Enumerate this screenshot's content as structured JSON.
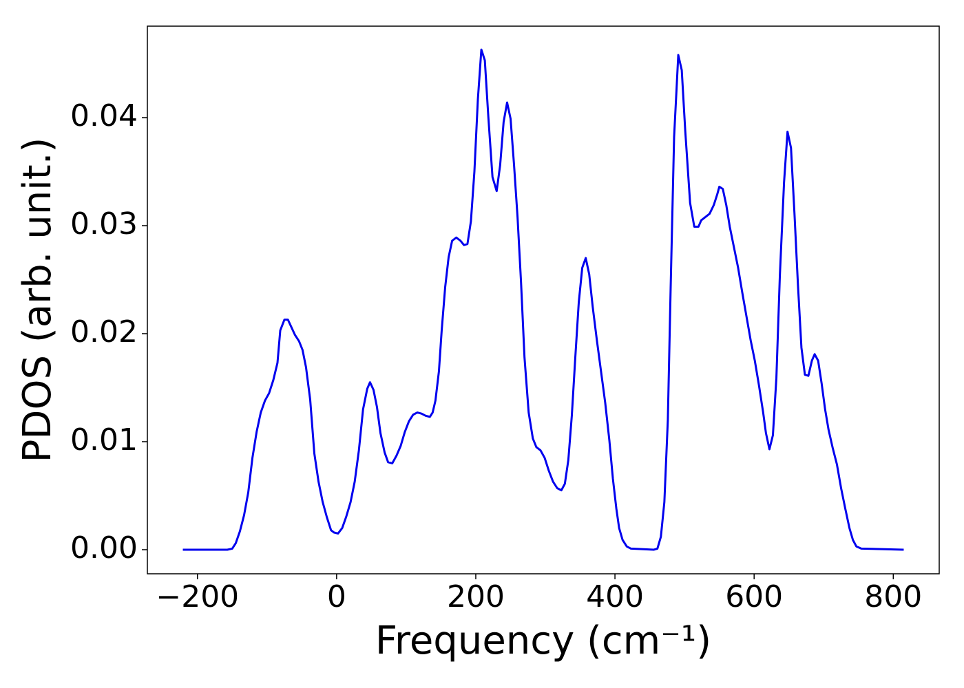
{
  "chart_data": {
    "type": "line",
    "xlabel": "Frequency (cm⁻¹)",
    "ylabel": "PDOS (arb. unit.)",
    "xlim": [
      -272,
      866
    ],
    "ylim": [
      -0.00223,
      0.04847
    ],
    "xticks": [
      {
        "value": -200,
        "label": "−200"
      },
      0,
      200,
      400,
      600,
      800
    ],
    "yticks": [
      {
        "value": 0,
        "label": "0.00"
      },
      {
        "value": 0.01,
        "label": "0.01"
      },
      {
        "value": 0.02,
        "label": "0.02"
      },
      {
        "value": 0.03,
        "label": "0.03"
      },
      {
        "value": 0.04,
        "label": "0.04"
      }
    ],
    "grid": false,
    "x": [
      -221,
      -157,
      -150,
      -145,
      -139,
      -133,
      -127,
      -121,
      -115,
      -109,
      -103,
      -97,
      -91,
      -85,
      -81,
      -75,
      -70,
      -60,
      -54,
      -49,
      -44,
      -38,
      -32,
      -26,
      -20,
      -14,
      -8,
      -4,
      2,
      8,
      14,
      20,
      26,
      32,
      38,
      44,
      48,
      53,
      58,
      63,
      69,
      74,
      80,
      86,
      92,
      98,
      104,
      110,
      116,
      122,
      128,
      134,
      138,
      142,
      147,
      151,
      156,
      161,
      166,
      172,
      178,
      183,
      188,
      193,
      198,
      203,
      208,
      213,
      218,
      224,
      230,
      235,
      240,
      245,
      250,
      255,
      260,
      265,
      270,
      276,
      282,
      287,
      293,
      299,
      305,
      311,
      317,
      323,
      328,
      333,
      338,
      343,
      348,
      353,
      358,
      363,
      368,
      374,
      380,
      386,
      392,
      397,
      402,
      406,
      411,
      417,
      423,
      456,
      461,
      466,
      471,
      476,
      480,
      485,
      491,
      496,
      501,
      508,
      514,
      520,
      524,
      530,
      536,
      542,
      547,
      550,
      555,
      560,
      565,
      571,
      577,
      583,
      589,
      595,
      601,
      607,
      613,
      617,
      622,
      627,
      632,
      637,
      643,
      648,
      653,
      658,
      663,
      668,
      673,
      678,
      683,
      687,
      692,
      697,
      702,
      707,
      713,
      719,
      725,
      731,
      737,
      742,
      747,
      754,
      815
    ],
    "series": [
      {
        "name": "PDOS",
        "color": "#0000ee",
        "values": [
          0,
          0,
          0.0001,
          0.0006,
          0.0017,
          0.0032,
          0.0053,
          0.0085,
          0.0109,
          0.0127,
          0.0138,
          0.0145,
          0.0157,
          0.0173,
          0.0203,
          0.0213,
          0.0213,
          0.0199,
          0.0193,
          0.0185,
          0.0169,
          0.0139,
          0.0089,
          0.0063,
          0.0044,
          0.003,
          0.0018,
          0.0016,
          0.0015,
          0.002,
          0.0031,
          0.0044,
          0.0063,
          0.0092,
          0.013,
          0.0149,
          0.0155,
          0.0148,
          0.0132,
          0.0108,
          0.009,
          0.0081,
          0.008,
          0.0087,
          0.0096,
          0.0109,
          0.0119,
          0.0125,
          0.0127,
          0.0126,
          0.0124,
          0.0123,
          0.0127,
          0.0138,
          0.0165,
          0.0203,
          0.0243,
          0.0271,
          0.0286,
          0.0289,
          0.0286,
          0.0282,
          0.0283,
          0.0304,
          0.035,
          0.0417,
          0.0463,
          0.0453,
          0.0401,
          0.0345,
          0.0332,
          0.0356,
          0.0396,
          0.0414,
          0.0399,
          0.0356,
          0.0308,
          0.0248,
          0.0178,
          0.0127,
          0.0103,
          0.0095,
          0.0092,
          0.0085,
          0.0073,
          0.0063,
          0.0057,
          0.0055,
          0.0061,
          0.0083,
          0.0124,
          0.0178,
          0.0229,
          0.0261,
          0.027,
          0.0255,
          0.0225,
          0.0194,
          0.0165,
          0.0136,
          0.0101,
          0.0066,
          0.0038,
          0.002,
          0.0009,
          0.0003,
          0.0001,
          0,
          0.0001,
          0.0012,
          0.0044,
          0.012,
          0.0241,
          0.0382,
          0.0458,
          0.0444,
          0.0388,
          0.0321,
          0.0299,
          0.0299,
          0.0305,
          0.0308,
          0.0311,
          0.0319,
          0.0329,
          0.0336,
          0.0334,
          0.0319,
          0.0299,
          0.028,
          0.0261,
          0.0238,
          0.0216,
          0.0194,
          0.0175,
          0.0152,
          0.0127,
          0.0108,
          0.0093,
          0.0106,
          0.0159,
          0.0254,
          0.034,
          0.0387,
          0.0372,
          0.0311,
          0.0245,
          0.0187,
          0.0162,
          0.0161,
          0.0175,
          0.0181,
          0.0175,
          0.0154,
          0.013,
          0.0111,
          0.0094,
          0.0079,
          0.0057,
          0.0038,
          0.002,
          0.0009,
          0.0003,
          0.0001,
          0
        ]
      }
    ]
  }
}
